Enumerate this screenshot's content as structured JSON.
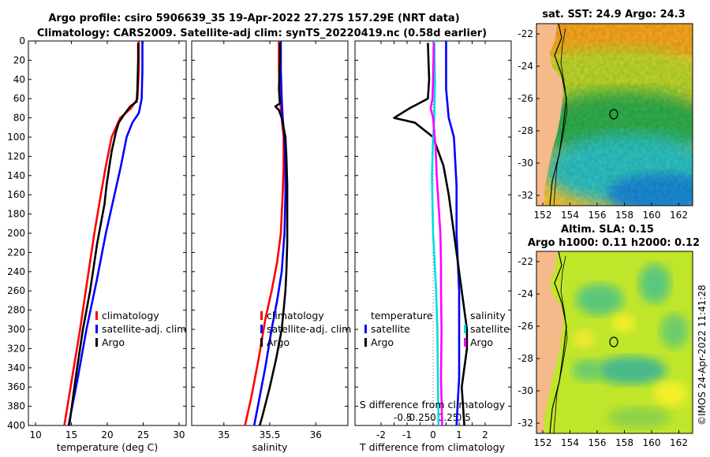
{
  "header": {
    "title_line1": "Argo profile: csiro 5906639_35 19-Apr-2022 27.27S 157.29E (NRT data)",
    "title_line2": "Climatology: CARS2009. Satellite-adj clim: synTS_20220419.nc (0.58d earlier)"
  },
  "copyright": "©IMOS 24-Apr-2022 11:41:28",
  "colors": {
    "climatology": "#ff0000",
    "satellite": "#0000ff",
    "argo": "#000000",
    "s_argo": "#ff00ff",
    "s_sat": "#00dddd",
    "land": "#f6b98a"
  },
  "chart_data": [
    {
      "id": "temperature",
      "type": "line",
      "xlabel": "temperature (deg C)",
      "ylabel": "",
      "xlim": [
        9,
        31
      ],
      "ylim": [
        0,
        400
      ],
      "xticks": [
        10,
        15,
        20,
        25,
        30
      ],
      "yticks": [
        0,
        20,
        40,
        60,
        80,
        100,
        120,
        140,
        160,
        180,
        200,
        220,
        240,
        260,
        280,
        300,
        320,
        340,
        360,
        380,
        400
      ],
      "legend": {
        "position": "lower-right",
        "entries": [
          "climatology",
          "satellite-adj. clim",
          "Argo"
        ]
      },
      "series": [
        {
          "name": "climatology",
          "color": "#ff0000",
          "points": [
            [
              24.4,
              0
            ],
            [
              24.4,
              30
            ],
            [
              24.2,
              60
            ],
            [
              23.3,
              70
            ],
            [
              21.8,
              80
            ],
            [
              20.6,
              100
            ],
            [
              19.8,
              130
            ],
            [
              19.1,
              160
            ],
            [
              18.2,
              200
            ],
            [
              17.2,
              250
            ],
            [
              16.2,
              300
            ],
            [
              15.1,
              350
            ],
            [
              14.0,
              400
            ]
          ]
        },
        {
          "name": "satellite-adj. clim",
          "color": "#0000ff",
          "points": [
            [
              24.9,
              0
            ],
            [
              24.9,
              30
            ],
            [
              24.8,
              60
            ],
            [
              24.4,
              75
            ],
            [
              23.5,
              85
            ],
            [
              22.7,
              100
            ],
            [
              21.9,
              130
            ],
            [
              21.0,
              160
            ],
            [
              19.8,
              200
            ],
            [
              18.5,
              250
            ],
            [
              17.1,
              300
            ],
            [
              15.9,
              350
            ],
            [
              14.6,
              400
            ]
          ]
        },
        {
          "name": "Argo",
          "color": "#000000",
          "points": [
            [
              24.3,
              2
            ],
            [
              24.3,
              20
            ],
            [
              24.2,
              50
            ],
            [
              24.1,
              63
            ],
            [
              23.2,
              68
            ],
            [
              22.5,
              75
            ],
            [
              21.6,
              85
            ],
            [
              21.2,
              95
            ],
            [
              20.9,
              105
            ],
            [
              20.6,
              115
            ],
            [
              20.4,
              125
            ],
            [
              19.9,
              150
            ],
            [
              19.6,
              170
            ],
            [
              18.6,
              210
            ],
            [
              17.6,
              260
            ],
            [
              16.6,
              300
            ],
            [
              15.6,
              350
            ],
            [
              14.7,
              400
            ]
          ]
        }
      ]
    },
    {
      "id": "salinity",
      "type": "line",
      "xlabel": "salinity",
      "ylabel": "",
      "xlim": [
        34.65,
        36.35
      ],
      "ylim": [
        0,
        400
      ],
      "xticks": [
        35,
        35.5,
        36
      ],
      "legend": {
        "position": "lower-right",
        "entries": [
          "climatology",
          "satellite-adj. clim",
          "Argo"
        ]
      },
      "series": [
        {
          "name": "climatology",
          "color": "#ff0000",
          "points": [
            [
              35.6,
              0
            ],
            [
              35.6,
              30
            ],
            [
              35.61,
              60
            ],
            [
              35.63,
              80
            ],
            [
              35.65,
              100
            ],
            [
              35.65,
              130
            ],
            [
              35.64,
              160
            ],
            [
              35.62,
              200
            ],
            [
              35.58,
              230
            ],
            [
              35.52,
              260
            ],
            [
              35.45,
              290
            ],
            [
              35.38,
              330
            ],
            [
              35.3,
              370
            ],
            [
              35.23,
              400
            ]
          ]
        },
        {
          "name": "satellite-adj. clim",
          "color": "#0000ff",
          "points": [
            [
              35.62,
              0
            ],
            [
              35.62,
              30
            ],
            [
              35.63,
              60
            ],
            [
              35.64,
              80
            ],
            [
              35.66,
              100
            ],
            [
              35.67,
              130
            ],
            [
              35.67,
              160
            ],
            [
              35.66,
              200
            ],
            [
              35.63,
              240
            ],
            [
              35.58,
              270
            ],
            [
              35.52,
              300
            ],
            [
              35.45,
              340
            ],
            [
              35.37,
              380
            ],
            [
              35.33,
              400
            ]
          ]
        },
        {
          "name": "Argo",
          "color": "#000000",
          "points": [
            [
              35.61,
              2
            ],
            [
              35.61,
              20
            ],
            [
              35.6,
              50
            ],
            [
              35.61,
              65
            ],
            [
              35.56,
              68
            ],
            [
              35.6,
              72
            ],
            [
              35.63,
              80
            ],
            [
              35.67,
              100
            ],
            [
              35.68,
              120
            ],
            [
              35.69,
              150
            ],
            [
              35.69,
              180
            ],
            [
              35.69,
              210
            ],
            [
              35.68,
              240
            ],
            [
              35.67,
              260
            ],
            [
              35.65,
              280
            ],
            [
              35.63,
              300
            ],
            [
              35.61,
              310
            ],
            [
              35.57,
              330
            ],
            [
              35.5,
              360
            ],
            [
              35.42,
              390
            ],
            [
              35.39,
              400
            ]
          ]
        }
      ]
    },
    {
      "id": "difference",
      "type": "line",
      "xlabel": "T difference from climatology",
      "xlabel_top": "S difference from climatology",
      "xlim": [
        -3,
        3
      ],
      "ylim": [
        0,
        400
      ],
      "xticks": [
        -2,
        -1.5,
        -1,
        -0.5,
        0,
        0.5,
        1,
        1.5,
        2
      ],
      "xticks_top_labels": [
        "-0.5",
        "-0.25",
        "0",
        "0.25",
        "0.5"
      ],
      "legend_left": {
        "title": "temperature",
        "entries": [
          "satellite",
          "Argo"
        ]
      },
      "legend_right": {
        "title": "salinity",
        "entries": [
          "satellite",
          "Argo"
        ]
      },
      "series": [
        {
          "name": "T satellite",
          "color": "#0000ff",
          "points": [
            [
              0.5,
              0
            ],
            [
              0.5,
              50
            ],
            [
              0.6,
              80
            ],
            [
              0.8,
              100
            ],
            [
              0.9,
              150
            ],
            [
              0.9,
              200
            ],
            [
              1.0,
              260
            ],
            [
              1.0,
              300
            ],
            [
              1.0,
              350
            ],
            [
              0.9,
              400
            ]
          ]
        },
        {
          "name": "T Argo",
          "color": "#000000",
          "points": [
            [
              -0.2,
              2
            ],
            [
              -0.15,
              40
            ],
            [
              -0.2,
              60
            ],
            [
              -0.9,
              70
            ],
            [
              -1.5,
              80
            ],
            [
              -0.7,
              85
            ],
            [
              0.0,
              100
            ],
            [
              0.4,
              130
            ],
            [
              0.6,
              160
            ],
            [
              0.8,
              200
            ],
            [
              1.0,
              240
            ],
            [
              1.2,
              280
            ],
            [
              1.3,
              300
            ],
            [
              1.3,
              320
            ],
            [
              1.1,
              360
            ],
            [
              1.2,
              400
            ]
          ]
        },
        {
          "name": "S satellite",
          "color": "#00dddd",
          "points": [
            [
              0.02,
              0
            ],
            [
              0.03,
              40
            ],
            [
              0.02,
              80
            ],
            [
              0.0,
              100
            ],
            [
              -0.02,
              140
            ],
            [
              0.0,
              200
            ],
            [
              0.05,
              260
            ],
            [
              0.07,
              300
            ],
            [
              0.08,
              350
            ],
            [
              0.09,
              400
            ]
          ]
        },
        {
          "name": "S Argo",
          "color": "#ff00ff",
          "points": [
            [
              0.01,
              2
            ],
            [
              0.0,
              40
            ],
            [
              -0.01,
              60
            ],
            [
              -0.04,
              70
            ],
            [
              0.0,
              80
            ],
            [
              0.04,
              110
            ],
            [
              0.06,
              140
            ],
            [
              0.09,
              170
            ],
            [
              0.12,
              200
            ],
            [
              0.13,
              230
            ],
            [
              0.13,
              260
            ],
            [
              0.14,
              300
            ],
            [
              0.13,
              350
            ],
            [
              0.15,
              400
            ]
          ]
        }
      ]
    }
  ],
  "maps": {
    "sst": {
      "title": "sat. SST: 24.9 Argo: 24.3",
      "lon_ticks": [
        "152",
        "154",
        "156",
        "158",
        "160",
        "162"
      ],
      "lat_ticks": [
        "-22",
        "-24",
        "-26",
        "-28",
        "-30",
        "-32"
      ]
    },
    "sla": {
      "title_line1": "Altim. SLA: 0.15",
      "title_line2": "Argo h1000: 0.11 h2000: 0.12",
      "lon_ticks": [
        "152",
        "154",
        "156",
        "158",
        "160",
        "162"
      ],
      "lat_ticks": [
        "-22",
        "-24",
        "-26",
        "-28",
        "-30",
        "-32"
      ]
    }
  }
}
